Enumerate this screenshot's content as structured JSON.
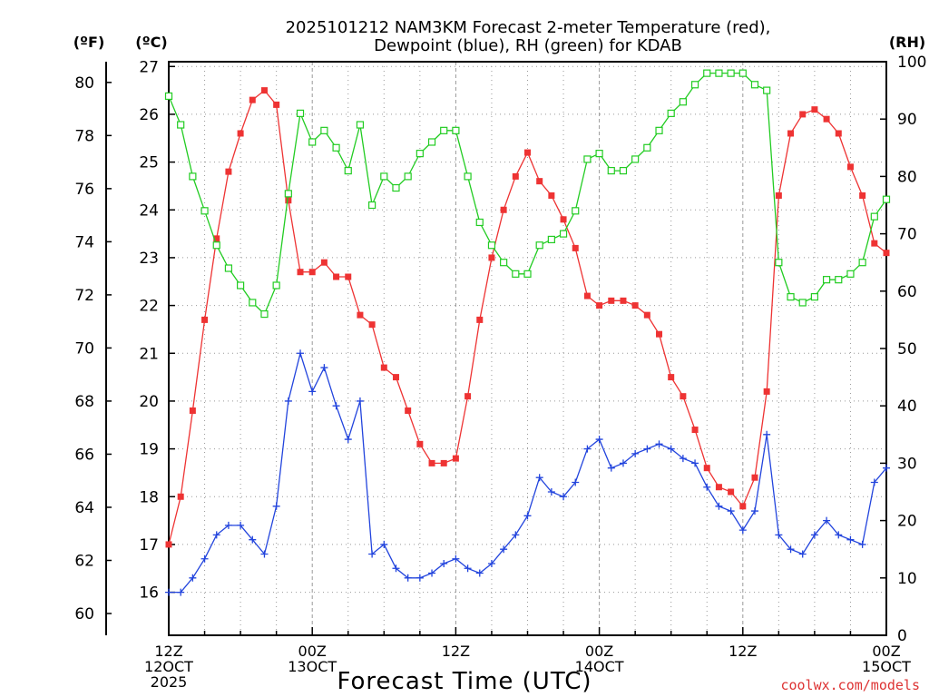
{
  "title_line1": "2025101212 NAM3KM Forecast 2-meter Temperature (red),",
  "title_line2": "Dewpoint (blue), RH (green) for KDAB",
  "left_outer_unit": "(ºF)",
  "left_inner_unit": "(ºC)",
  "right_unit": "(RH)",
  "xlabel": "Forecast Time (UTC)",
  "watermark": "coolwx.com/models",
  "chart_data": {
    "type": "line",
    "x_hours_start": "2025-10-12 12Z",
    "x_step_hours": 1,
    "xlim_hours": [
      0,
      60
    ],
    "ylim_c": [
      15.1,
      27.1
    ],
    "ylim_f": [
      59.18,
      80.78
    ],
    "ylim_rh": [
      0,
      100
    ],
    "grid": true,
    "x_ticks": [
      {
        "h": 0,
        "lines": [
          "12Z",
          "12OCT",
          "2025"
        ]
      },
      {
        "h": 12,
        "lines": [
          "00Z",
          "13OCT"
        ]
      },
      {
        "h": 24,
        "lines": [
          "12Z"
        ]
      },
      {
        "h": 36,
        "lines": [
          "00Z",
          "14OCT"
        ]
      },
      {
        "h": 48,
        "lines": [
          "12Z"
        ]
      },
      {
        "h": 60,
        "lines": [
          "00Z",
          "15OCT"
        ]
      }
    ],
    "c_ticks": [
      16,
      17,
      18,
      19,
      20,
      21,
      22,
      23,
      24,
      25,
      26,
      27
    ],
    "f_ticks": [
      60,
      62,
      64,
      66,
      68,
      70,
      72,
      74,
      76,
      78,
      80
    ],
    "rh_ticks": [
      0,
      10,
      20,
      30,
      40,
      50,
      60,
      70,
      80,
      90,
      100
    ],
    "series": [
      {
        "name": "Temperature",
        "unit": "C",
        "color": "#ee3333",
        "marker": "filled-square",
        "values": [
          17.0,
          18.0,
          19.8,
          21.7,
          23.4,
          24.8,
          25.6,
          26.3,
          26.5,
          26.2,
          24.2,
          22.7,
          22.7,
          22.9,
          22.6,
          22.6,
          21.8,
          21.6,
          20.7,
          20.5,
          19.8,
          19.1,
          18.7,
          18.7,
          18.8,
          20.1,
          21.7,
          23.0,
          24.0,
          24.7,
          25.2,
          24.6,
          24.3,
          23.8,
          23.2,
          22.2,
          22.0,
          22.1,
          22.1,
          22.0,
          21.8,
          21.4,
          20.5,
          20.1,
          19.4,
          18.6,
          18.2,
          18.1,
          17.8,
          18.4,
          20.2,
          24.3,
          25.6,
          26.0,
          26.1,
          25.9,
          25.6,
          24.9,
          24.3,
          23.3,
          23.1
        ]
      },
      {
        "name": "Dewpoint",
        "unit": "C",
        "color": "#2244dd",
        "marker": "plus",
        "values": [
          16.0,
          16.0,
          16.3,
          16.7,
          17.2,
          17.4,
          17.4,
          17.1,
          16.8,
          17.8,
          20.0,
          21.0,
          20.2,
          20.7,
          19.9,
          19.2,
          20.0,
          16.8,
          17.0,
          16.5,
          16.3,
          16.3,
          16.4,
          16.6,
          16.7,
          16.5,
          16.4,
          16.6,
          16.9,
          17.2,
          17.6,
          18.4,
          18.1,
          18.0,
          18.3,
          19.0,
          19.2,
          18.6,
          18.7,
          18.9,
          19.0,
          19.1,
          19.0,
          18.8,
          18.7,
          18.2,
          17.8,
          17.7,
          17.3,
          17.7,
          19.3,
          17.2,
          16.9,
          16.8,
          17.2,
          17.5,
          17.2,
          17.1,
          17.0,
          18.3,
          18.6
        ]
      },
      {
        "name": "RH",
        "unit": "%",
        "color": "#22cc22",
        "marker": "open-square",
        "values": [
          94,
          89,
          80,
          74,
          68,
          64,
          61,
          58,
          56,
          61,
          77,
          91,
          86,
          88,
          85,
          81,
          89,
          75,
          80,
          78,
          80,
          84,
          86,
          88,
          88,
          80,
          72,
          68,
          65,
          63,
          63,
          68,
          69,
          70,
          74,
          83,
          84,
          81,
          81,
          83,
          85,
          88,
          91,
          93,
          96,
          98,
          98,
          98,
          98,
          96,
          95,
          65,
          59,
          58,
          59,
          62,
          62,
          63,
          65,
          73,
          76
        ]
      }
    ]
  }
}
